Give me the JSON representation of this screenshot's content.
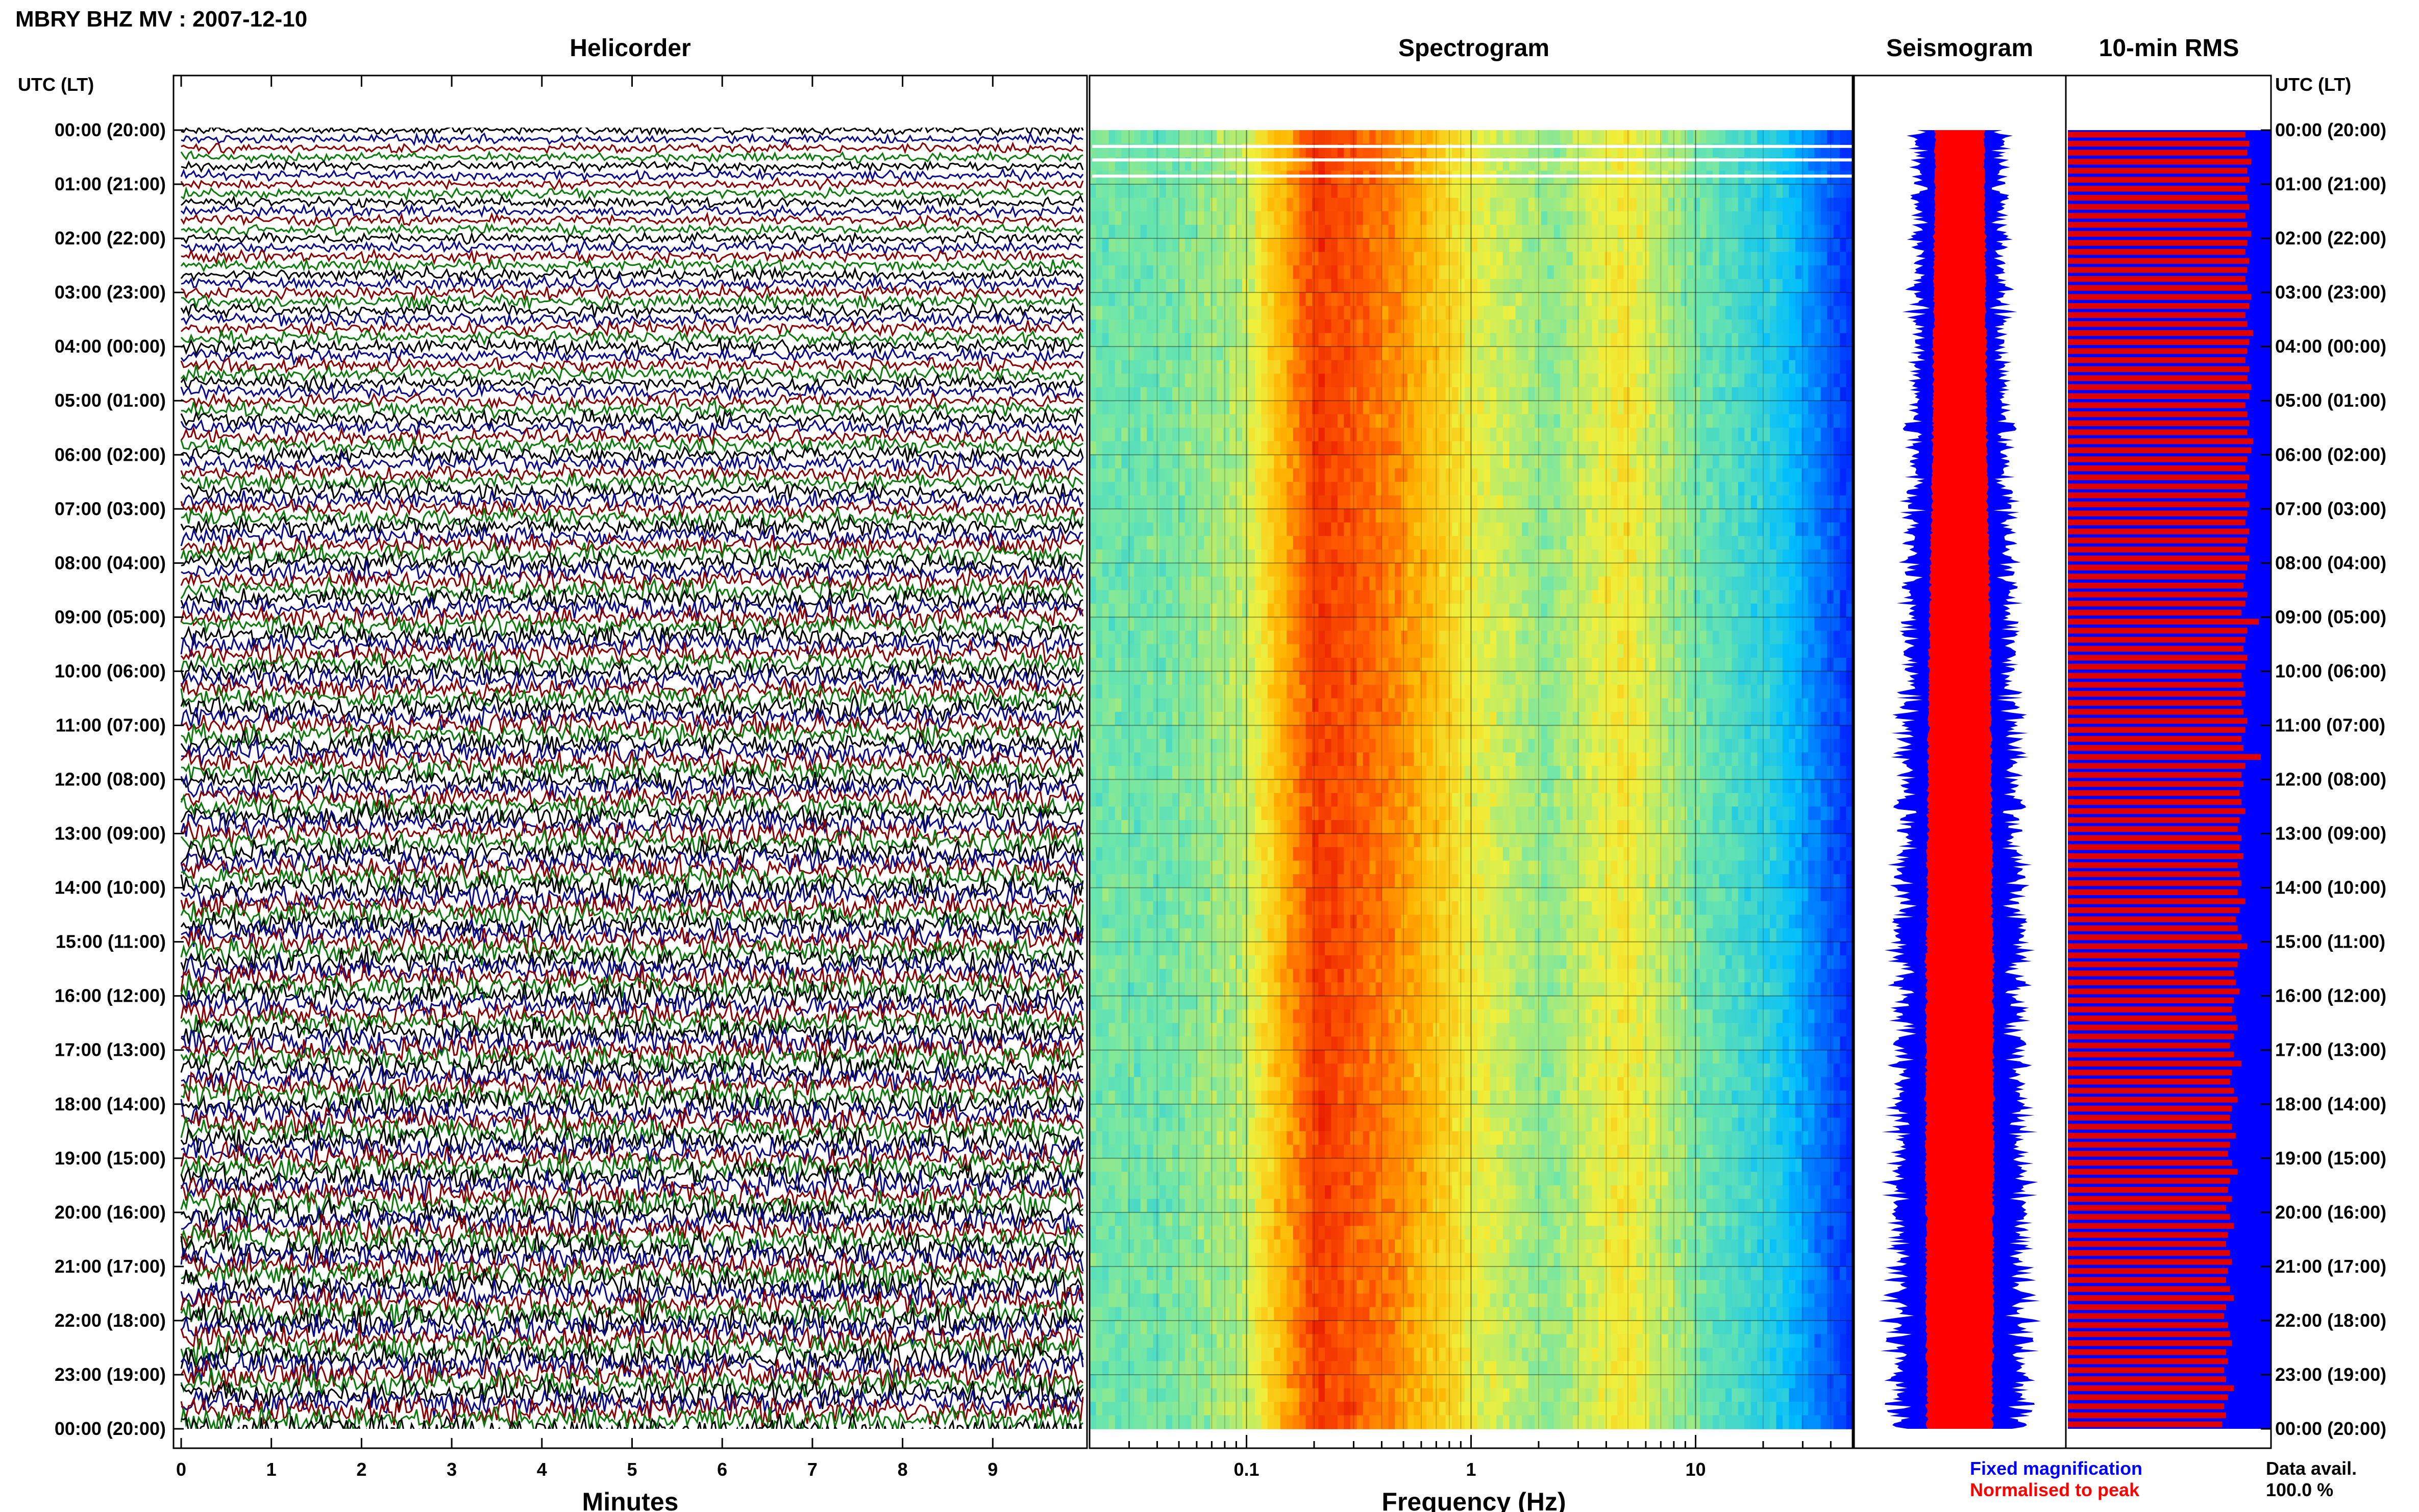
{
  "header": {
    "title": "MBRY BHZ MV : 2007-12-10"
  },
  "panels": {
    "helicorder": "Helicorder",
    "spectrogram": "Spectrogram",
    "seismogram": "Seismogram",
    "rms": "10-min RMS"
  },
  "time_axis": {
    "label_left": "UTC (LT)",
    "label_right": "UTC (LT)",
    "ticks": [
      "00:00 (20:00)",
      "01:00 (21:00)",
      "02:00 (22:00)",
      "03:00 (23:00)",
      "04:00 (00:00)",
      "05:00 (01:00)",
      "06:00 (02:00)",
      "07:00 (03:00)",
      "08:00 (04:00)",
      "09:00 (05:00)",
      "10:00 (06:00)",
      "11:00 (07:00)",
      "12:00 (08:00)",
      "13:00 (09:00)",
      "14:00 (10:00)",
      "15:00 (11:00)",
      "16:00 (12:00)",
      "17:00 (13:00)",
      "18:00 (14:00)",
      "19:00 (15:00)",
      "20:00 (16:00)",
      "21:00 (17:00)",
      "22:00 (18:00)",
      "23:00 (19:00)",
      "00:00 (20:00)"
    ]
  },
  "legend": {
    "fixed": "Fixed magnification",
    "normalised": "Normalised to peak",
    "avail_label": "Data avail.",
    "avail_value": "100.0 %"
  },
  "colors": {
    "helicorder_traces": [
      "#000000",
      "#0a0a8c",
      "#8b0000",
      "#0a7a0a"
    ],
    "fixed": "#0000ff",
    "normalised": "#ff0000",
    "rms_background": "#0000ff",
    "rms_bar": "#e00000",
    "spectrogram_high": "#ff2a00",
    "spectrogram_low": "#00008b"
  },
  "chart_data": [
    {
      "type": "line",
      "title": "Helicorder",
      "xlabel": "Minutes",
      "xlim": [
        0,
        10
      ],
      "x_ticks": [
        "0",
        "1",
        "2",
        "3",
        "4",
        "5",
        "6",
        "7",
        "8",
        "9"
      ],
      "ylabel": "UTC (LT)",
      "rows": 144,
      "series": [
        {
          "values": [
            0.2,
            0.22,
            0.25,
            0.28,
            0.3,
            0.32,
            0.36,
            0.4,
            0.44,
            0.46,
            0.48,
            0.5,
            0.52,
            0.54,
            0.55,
            0.56,
            0.57,
            0.58,
            0.59,
            0.6,
            0.61,
            0.62,
            0.62,
            0.62,
            0.6
          ]
        }
      ]
    },
    {
      "type": "heatmap",
      "title": "Spectrogram",
      "xlabel": "Frequency (Hz)",
      "x_scale": "log",
      "xlim": [
        0.02,
        50
      ],
      "x_ticks": [
        "0.1",
        "1",
        "10"
      ],
      "peak_band_hz": [
        0.16,
        0.5
      ],
      "secondary_peak_hz": 3.5,
      "values": [
        [
          0.55,
          0.55,
          0.62,
          0.95,
          0.85,
          0.68,
          0.58,
          0.7,
          0.55,
          0.45,
          0.2
        ]
      ]
    },
    {
      "type": "line",
      "title": "Seismogram",
      "series": [
        {
          "name": "Fixed magnification",
          "values": [
            0.4,
            0.4,
            0.42,
            0.42,
            0.44,
            0.44,
            0.46,
            0.48,
            0.5,
            0.52,
            0.52,
            0.54,
            0.55,
            0.56,
            0.57,
            0.58,
            0.59,
            0.6,
            0.6,
            0.61,
            0.62,
            0.62,
            0.62,
            0.62
          ]
        },
        {
          "name": "Normalised to peak",
          "values": [
            0.24,
            0.24,
            0.25,
            0.25,
            0.26,
            0.26,
            0.27,
            0.28,
            0.29,
            0.3,
            0.3,
            0.31,
            0.31,
            0.32,
            0.32,
            0.33,
            0.33,
            0.33,
            0.33,
            0.33,
            0.33,
            0.33,
            0.32,
            0.32
          ]
        }
      ]
    },
    {
      "type": "bar",
      "title": "10-min RMS",
      "orientation": "horizontal",
      "bins": 144,
      "values": [
        0.92,
        0.94,
        0.93,
        0.95,
        0.93,
        0.94,
        0.92,
        0.93,
        0.94,
        0.92,
        0.93,
        0.95,
        0.93,
        0.92,
        0.94,
        0.93,
        0.92,
        0.93,
        0.95,
        0.94,
        0.92,
        0.93,
        0.96,
        0.94,
        0.93,
        0.92,
        0.94,
        0.93,
        0.95,
        0.94,
        0.92,
        0.93,
        0.94,
        0.93,
        0.96,
        0.95,
        0.93,
        0.92,
        0.94,
        0.93,
        0.92,
        0.94,
        0.93,
        0.92,
        0.94,
        0.93,
        0.92,
        0.94,
        0.93,
        0.92,
        0.91,
        0.93,
        0.92,
        0.9,
        0.99,
        0.93,
        0.92,
        0.91,
        0.93,
        0.92,
        0.9,
        0.91,
        0.92,
        0.9,
        0.91,
        0.93,
        0.92,
        0.9,
        0.91,
        1.0,
        0.92,
        0.9,
        0.91,
        0.89,
        0.9,
        0.92,
        0.89,
        0.88,
        0.9,
        0.89,
        0.91,
        0.88,
        0.89,
        0.9,
        0.88,
        0.92,
        0.89,
        0.87,
        0.88,
        0.9,
        0.93,
        0.89,
        0.88,
        0.86,
        0.87,
        0.89,
        0.86,
        0.85,
        0.87,
        0.88,
        0.86,
        0.84,
        0.86,
        0.9,
        0.85,
        0.84,
        0.86,
        0.88,
        0.85,
        0.84,
        0.85,
        0.87,
        0.84,
        0.83,
        0.85,
        0.88,
        0.84,
        0.83,
        0.85,
        0.82,
        0.84,
        0.86,
        0.83,
        0.82,
        0.84,
        0.85,
        0.83,
        0.82,
        0.84,
        0.86,
        0.82,
        0.81,
        0.83,
        0.84,
        0.85,
        0.82,
        0.83,
        0.81,
        0.82,
        0.86,
        0.83,
        0.81,
        0.82,
        0.8
      ]
    }
  ]
}
